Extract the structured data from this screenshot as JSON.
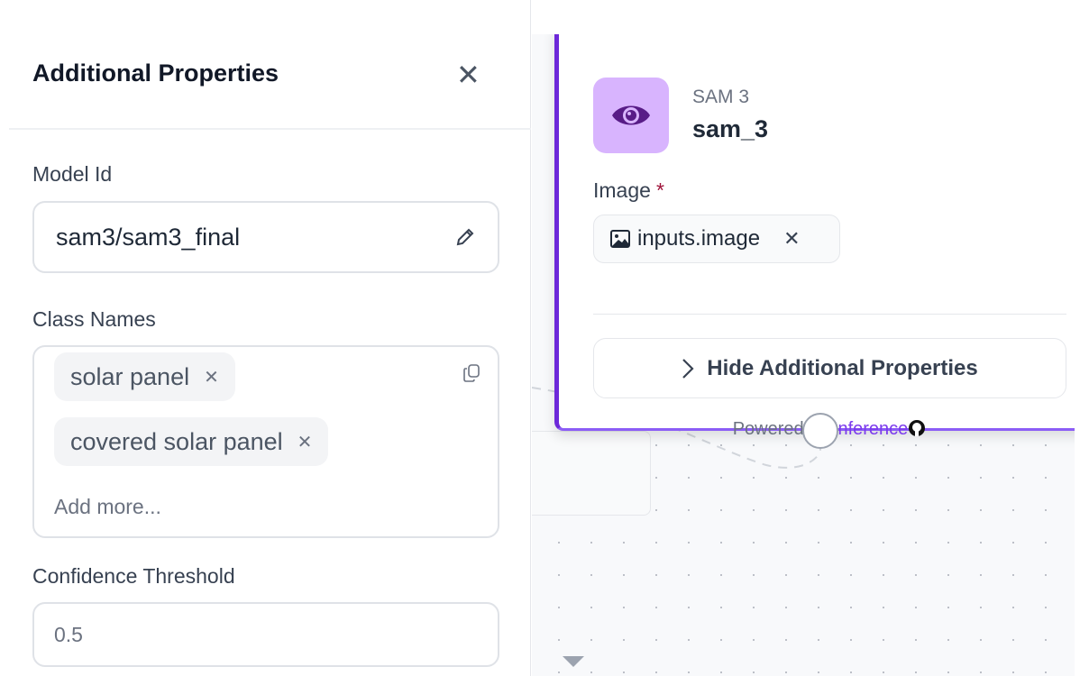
{
  "panel": {
    "title": "Additional Properties",
    "close_icon": "close-icon",
    "model_id": {
      "label": "Model Id",
      "value": "sam3/sam3_final",
      "icon": "pencil-icon"
    },
    "class_names": {
      "label": "Class Names",
      "chips": [
        "solar panel",
        "covered solar panel"
      ],
      "placeholder": "Add more...",
      "icon": "copy-icon"
    },
    "confidence_threshold": {
      "label": "Confidence Threshold",
      "value": "0.5"
    }
  },
  "node": {
    "icon": "eye-icon",
    "type": "SAM 3",
    "name": "sam_3",
    "image_label": "Image",
    "required_mark": "*",
    "image_input": "inputs.image",
    "hide_button": "Hide Additional Properties",
    "powered_by": "Powered by",
    "brand": "Inference",
    "colors": {
      "accent": "#6d28d9",
      "icon_bg": "#d8b4fe",
      "brand": "#7c3aed",
      "required": "#9f1239"
    }
  }
}
